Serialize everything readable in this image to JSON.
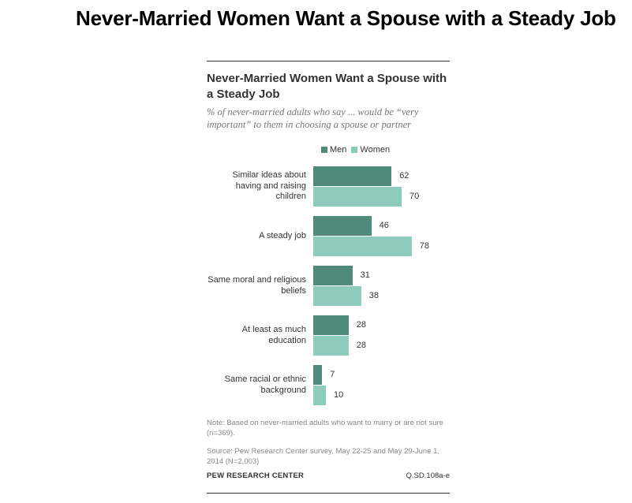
{
  "page_title": "Never-Married Women Want a Spouse with a Steady Job",
  "chart_data": {
    "type": "bar",
    "orientation": "horizontal",
    "title": "Never-Married Women Want a Spouse with a Steady Job",
    "subtitle": "% of never-married adults who say ... would be “very important” to them in choosing a spouse or partner",
    "categories": [
      "Similar ideas about having and raising children",
      "A steady job",
      "Same moral and religious beliefs",
      "At least as much education",
      "Same racial or ethnic background"
    ],
    "series": [
      {
        "name": "Men",
        "values": [
          62,
          46,
          31,
          28,
          7
        ],
        "color": "#4f8a7a"
      },
      {
        "name": "Women",
        "values": [
          70,
          78,
          38,
          28,
          10
        ],
        "color": "#8fcbbd"
      }
    ],
    "xlim": [
      0,
      100
    ],
    "legend": "top"
  },
  "notes": {
    "note": "Note: Based on never-married adults who want to marry or are not sure (n=369).",
    "source": "Source: Pew Research Center survey, May 22-25 and May 29-June 1, 2014 (N=2,003)",
    "org": "PEW RESEARCH CENTER",
    "code": "Q.SD.108a-e"
  }
}
